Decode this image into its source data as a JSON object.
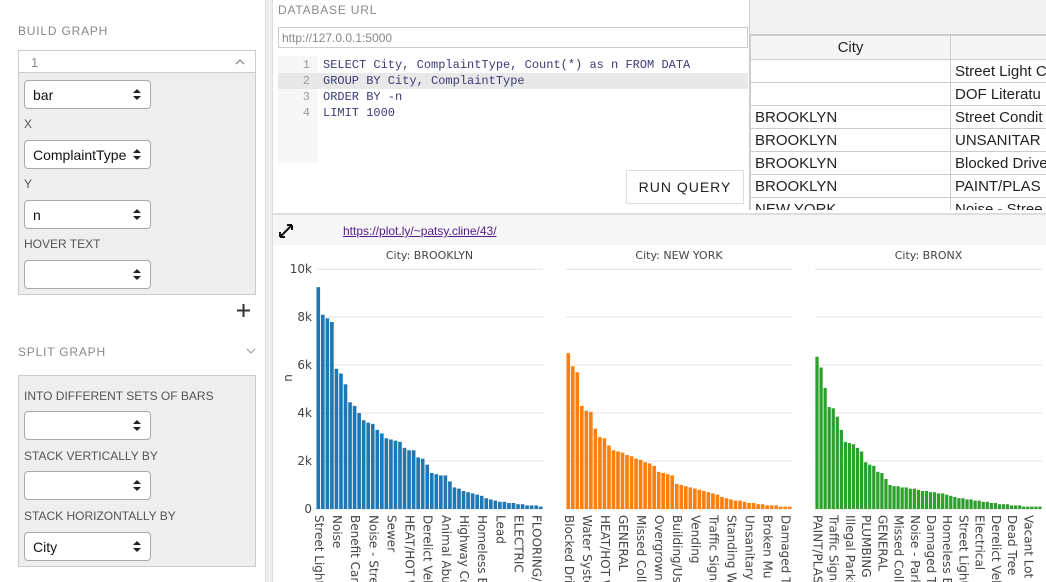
{
  "sidebar": {
    "build_title": "BUILD GRAPH",
    "panel_label": "1",
    "chart_type": "bar",
    "x_label": "X",
    "x_value": "ComplaintType",
    "y_label": "Y",
    "y_value": "n",
    "hover_label": "HOVER TEXT",
    "split_title": "SPLIT GRAPH",
    "bars_label": "INTO DIFFERENT SETS OF BARS",
    "stack_v_label": "STACK VERTICALLY BY",
    "stack_h_label": "STACK HORIZONTALLY BY",
    "stack_h_value": "City"
  },
  "query": {
    "url_label": "DATABASE URL",
    "url": "http://127.0.0.1:5000",
    "line_numbers": [
      1,
      2,
      3,
      4
    ],
    "lines": [
      "SELECT City, ComplaintType, Count(*) as n FROM DATA",
      "GROUP BY City, ComplaintType",
      "ORDER BY -n",
      "LIMIT 1000"
    ],
    "run": "RUN QUERY"
  },
  "table": {
    "header": "City",
    "rows": [
      [
        null,
        "Street Light C"
      ],
      [
        null,
        "DOF Literatu"
      ],
      [
        "BROOKLYN",
        "Street Condit"
      ],
      [
        "BROOKLYN",
        "UNSANITAR"
      ],
      [
        "BROOKLYN",
        "Blocked Drive"
      ],
      [
        "BROOKLYN",
        "PAINT/PLAS"
      ],
      [
        "NEW YORK",
        "Noise - Stree"
      ]
    ]
  },
  "plot_link": "https://plot.ly/~patsy.cline/43/",
  "chart_data": [
    {
      "type": "bar",
      "title": "City: BROOKLYN",
      "ylabel": "n",
      "color": "#1f77b4",
      "ylim": [
        0,
        10300
      ],
      "yticks": [
        0,
        {
          "value": 2000,
          "label": "2k"
        },
        {
          "value": 4000,
          "label": "4k"
        },
        {
          "value": 6000,
          "label": "6k"
        },
        {
          "value": 8000,
          "label": "8k"
        },
        {
          "value": 10000,
          "label": "10k"
        }
      ],
      "categories": [
        "Street Light",
        null,
        null,
        null,
        "Noise",
        null,
        null,
        null,
        "Benefit Card",
        null,
        null,
        null,
        "Noise - Stree",
        null,
        null,
        null,
        "Sewer",
        null,
        null,
        null,
        "HEAT/HOT W",
        null,
        null,
        null,
        "Derelict Veh",
        null,
        null,
        null,
        "Animal Abu",
        null,
        null,
        null,
        "Highway Co",
        null,
        null,
        null,
        "Homeless E",
        null,
        null,
        null,
        "Lead",
        null,
        null,
        null,
        "ELECTRIC",
        null,
        null,
        null,
        "FLOORING/",
        null
      ],
      "values": [
        9250,
        8100,
        7950,
        7800,
        5850,
        5650,
        5200,
        4450,
        4300,
        4000,
        3700,
        3600,
        3550,
        3300,
        3150,
        2950,
        2900,
        2850,
        2800,
        2550,
        2450,
        2450,
        2150,
        2100,
        1850,
        1500,
        1450,
        1400,
        1400,
        1150,
        900,
        850,
        750,
        700,
        650,
        600,
        550,
        450,
        400,
        350,
        300,
        300,
        250,
        250,
        200,
        200,
        150,
        150,
        150,
        100
      ]
    },
    {
      "type": "bar",
      "title": "City: NEW YORK",
      "color": "#ff7f0e",
      "ylim": [
        0,
        10300
      ],
      "categories": [
        "Blocked Driv",
        null,
        null,
        null,
        "Water Syste",
        null,
        null,
        null,
        "HEAT/HOT W",
        null,
        null,
        null,
        "GENERAL",
        null,
        null,
        null,
        "Missed Colle",
        null,
        null,
        null,
        "Overgrown",
        null,
        null,
        null,
        "Building/Us",
        null,
        null,
        null,
        "Vending",
        null,
        null,
        null,
        "Traffic Signa",
        null,
        null,
        null,
        "Standing W",
        null,
        null,
        null,
        "Unsanitary",
        null,
        null,
        null,
        "Broken Mu",
        null,
        null,
        null,
        "Damaged T",
        null
      ],
      "values": [
        6500,
        5950,
        5700,
        4300,
        4100,
        4050,
        3350,
        3000,
        2950,
        2650,
        2450,
        2400,
        2350,
        2250,
        2200,
        2100,
        2050,
        1950,
        1900,
        1800,
        1550,
        1500,
        1450,
        1400,
        1050,
        1000,
        950,
        900,
        850,
        800,
        750,
        700,
        650,
        600,
        500,
        450,
        400,
        350,
        350,
        300,
        250,
        250,
        200,
        200,
        150,
        150,
        150,
        100,
        100,
        100
      ]
    },
    {
      "type": "bar",
      "title": "City: BRONX",
      "color": "#2ca02c",
      "ylim": [
        0,
        10300
      ],
      "categories": [
        "PAINT/PLAS",
        null,
        null,
        null,
        "Traffic Signa",
        null,
        null,
        null,
        "Illegal Parkin",
        null,
        null,
        null,
        "PLUMBING",
        null,
        null,
        null,
        "GENERAL",
        null,
        null,
        null,
        "Missed Colle",
        null,
        null,
        null,
        "Noise - Park",
        null,
        null,
        null,
        "Damaged T",
        null,
        null,
        null,
        "Homeless E",
        null,
        null,
        null,
        "Street Light",
        null,
        null,
        null,
        "Electrical",
        null,
        null,
        null,
        "Derelict Veh",
        null,
        null,
        null,
        "Dead Tree",
        null,
        null,
        null,
        "Vacant Lot",
        null,
        null,
        null
      ],
      "values": [
        6350,
        5900,
        5050,
        4250,
        4200,
        3850,
        3300,
        2800,
        2750,
        2700,
        2550,
        2400,
        1950,
        1850,
        1800,
        1550,
        1500,
        1250,
        1000,
        950,
        950,
        900,
        900,
        850,
        850,
        800,
        750,
        750,
        700,
        700,
        650,
        650,
        600,
        550,
        500,
        450,
        450,
        400,
        400,
        350,
        350,
        300,
        300,
        250,
        250,
        200,
        200,
        200,
        150,
        150,
        150,
        100,
        100,
        100,
        100,
        100
      ]
    }
  ]
}
